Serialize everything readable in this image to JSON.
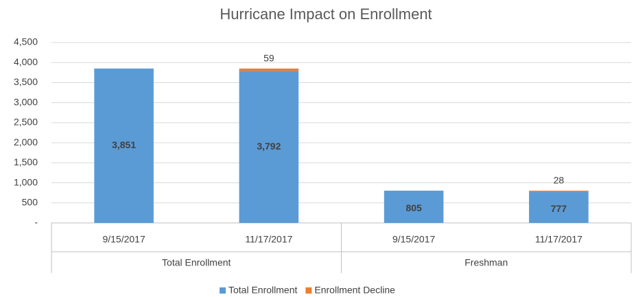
{
  "chart_data": {
    "type": "stacked_bar",
    "title": "Hurricane Impact on Enrollment",
    "groups": [
      {
        "name": "Total Enrollment",
        "categories": [
          "9/15/2017",
          "11/17/2017"
        ]
      },
      {
        "name": "Freshman",
        "categories": [
          "9/15/2017",
          "11/17/2017"
        ]
      }
    ],
    "series": [
      {
        "name": "Total Enrollment",
        "color": "#5b9bd5",
        "values": [
          3851,
          3792,
          805,
          777
        ],
        "value_labels": [
          "3,851",
          "3,792",
          "805",
          "777"
        ]
      },
      {
        "name": "Enrollment Decline",
        "color": "#ed7d31",
        "values": [
          null,
          59,
          null,
          28
        ]
      }
    ],
    "ylim": [
      0,
      4500
    ],
    "yticks": [
      {
        "value": 0,
        "label": "-"
      },
      500,
      {
        "value": 1000,
        "label": "1,000"
      },
      {
        "value": 1500,
        "label": "1,500"
      },
      {
        "value": 2000,
        "label": "2,000"
      },
      {
        "value": 2500,
        "label": "2,500"
      },
      {
        "value": 3000,
        "label": "3,000"
      },
      {
        "value": 3500,
        "label": "3,500"
      },
      {
        "value": 4000,
        "label": "4,000"
      },
      {
        "value": 4500,
        "label": "4,500"
      }
    ],
    "grid": true,
    "legend": "bottom"
  }
}
